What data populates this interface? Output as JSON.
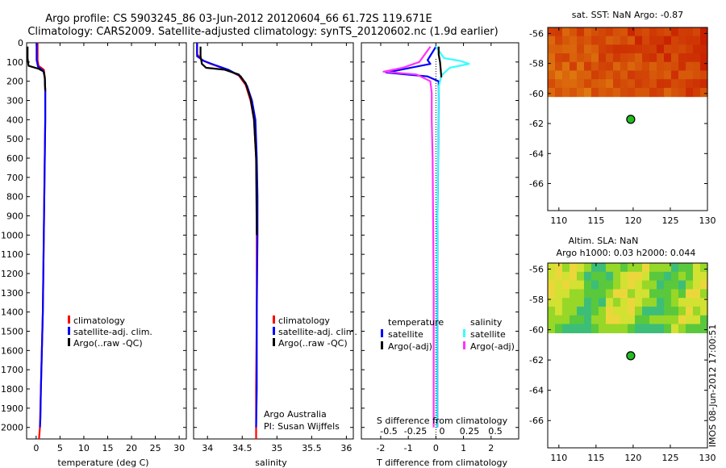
{
  "header": {
    "line1": "Argo profile: CS 5903245_86 03-Jun-2012 20120604_66 61.72S 119.671E",
    "line2": "Climatology: CARS2009. Satellite-adjusted climatology: synTS_20120602.nc (1.9d earlier)"
  },
  "colors": {
    "red": "#ff0000",
    "blue": "#0000ff",
    "black": "#000000",
    "cyan": "#33ffff",
    "magenta": "#ff33ff"
  },
  "depth_ticks": [
    0,
    100,
    200,
    300,
    400,
    500,
    600,
    700,
    800,
    900,
    1000,
    1100,
    1200,
    1300,
    1400,
    1500,
    1600,
    1700,
    1800,
    1900,
    2000
  ],
  "chart_data": [
    {
      "type": "line",
      "name": "temperature-profile",
      "xlabel": "temperature (deg C)",
      "xlim": [
        -2,
        31.5
      ],
      "ylim": [
        2060,
        0
      ],
      "xticks": [
        0,
        5,
        10,
        15,
        20,
        25,
        30
      ],
      "legend": [
        "climatology",
        "satellite-adj. clim.",
        "Argo(..raw -QC)"
      ],
      "series": [
        {
          "name": "climatology",
          "color": "red",
          "x": [
            0.3,
            0.3,
            0.5,
            1.6,
            1.8,
            1.9,
            1.9,
            1.8,
            1.7,
            1.6,
            1.5,
            1.4,
            1.2,
            1.0,
            0.8,
            0.6
          ],
          "y": [
            0,
            90,
            120,
            140,
            180,
            250,
            400,
            600,
            800,
            1000,
            1200,
            1400,
            1600,
            1800,
            2000,
            2060
          ]
        },
        {
          "name": "satellite-adj. clim.",
          "color": "blue",
          "x": [
            0.1,
            0.1,
            0.4,
            1.5,
            1.8,
            1.9,
            1.9,
            1.8,
            1.7,
            1.6,
            1.5,
            1.4,
            1.2,
            1.0,
            0.9,
            0.8
          ],
          "y": [
            0,
            90,
            125,
            145,
            180,
            250,
            400,
            600,
            800,
            1000,
            1200,
            1400,
            1600,
            1800,
            1950,
            2000
          ]
        },
        {
          "name": "Argo(..raw -QC)",
          "color": "black",
          "x": [
            -1.8,
            -1.8,
            -1.6,
            0.5,
            1.6,
            1.8,
            1.9
          ],
          "y": [
            20,
            80,
            120,
            135,
            150,
            180,
            250
          ]
        }
      ]
    },
    {
      "type": "line",
      "name": "salinity-profile",
      "xlabel": "salinity",
      "xlim": [
        33.8,
        36.1
      ],
      "ylim": [
        2060,
        0
      ],
      "xticks": [
        34,
        34.5,
        35,
        35.5,
        36
      ],
      "legend": [
        "climatology",
        "satellite-adj. clim.",
        "Argo(..raw -QC)"
      ],
      "annotation": [
        "Argo Australia",
        "PI: Susan Wijffels"
      ],
      "series": [
        {
          "name": "climatology",
          "color": "red",
          "x": [
            33.85,
            33.85,
            33.92,
            34.05,
            34.25,
            34.45,
            34.55,
            34.62,
            34.67,
            34.7,
            34.71,
            34.71,
            34.71,
            34.7,
            34.7,
            34.7
          ],
          "y": [
            0,
            60,
            90,
            110,
            135,
            170,
            220,
            300,
            400,
            600,
            800,
            1000,
            1400,
            1800,
            2000,
            2060
          ]
        },
        {
          "name": "satellite-adj. clim.",
          "color": "blue",
          "x": [
            33.85,
            33.85,
            33.95,
            34.1,
            34.3,
            34.48,
            34.57,
            34.64,
            34.69,
            34.71,
            34.72,
            34.72,
            34.71,
            34.71,
            34.7
          ],
          "y": [
            0,
            70,
            95,
            115,
            140,
            175,
            225,
            300,
            400,
            600,
            800,
            1000,
            1400,
            1800,
            2000
          ]
        },
        {
          "name": "Argo(..raw -QC)",
          "color": "black",
          "x": [
            33.9,
            33.9,
            33.92,
            33.98,
            34.25,
            34.45,
            34.55,
            34.62,
            34.67,
            34.7,
            34.71
          ],
          "y": [
            20,
            70,
            110,
            130,
            140,
            165,
            210,
            290,
            400,
            600,
            1000
          ]
        }
      ]
    },
    {
      "type": "line",
      "name": "difference-profile",
      "xlabel": "T difference from climatology",
      "xlabel2": "S difference from climatology",
      "xlim": [
        -2.7,
        3
      ],
      "ylim": [
        2060,
        0
      ],
      "xticks": [
        -2,
        -1,
        0,
        1,
        2
      ],
      "xticks_s": [
        -0.5,
        -0.25,
        0,
        0.25,
        0.5
      ],
      "legend_t_title": "temperature",
      "legend_s_title": "salinity",
      "legend": [
        "satellite",
        "Argo(-adj)",
        "satellite",
        "Argo(-adj)"
      ],
      "series": [
        {
          "name": "temperature satellite",
          "color": "blue",
          "x": [
            0,
            -0.3,
            -0.2,
            -1.8,
            -0.3,
            0.1,
            0.1,
            0.08,
            0.06,
            0.05,
            0.05,
            0.05,
            0.05
          ],
          "y": [
            20,
            90,
            110,
            155,
            175,
            200,
            300,
            600,
            900,
            1200,
            1500,
            1800,
            2000
          ]
        },
        {
          "name": "salinity satellite",
          "color": "cyan",
          "x": [
            0,
            0.3,
            0.9,
            1.2,
            0.5,
            0.2,
            0.1,
            0.08,
            0.06,
            0.04,
            0.04,
            0.04
          ],
          "y": [
            20,
            80,
            95,
            110,
            130,
            170,
            230,
            500,
            900,
            1300,
            1700,
            2000
          ]
        },
        {
          "name": "temperature Argo(-adj)",
          "color": "black",
          "x": [
            0.1,
            0.1,
            0.15,
            0.2
          ],
          "y": [
            20,
            60,
            100,
            180
          ]
        },
        {
          "name": "salinity Argo(-adj)",
          "color": "magenta",
          "x": [
            -0.2,
            -0.6,
            -1.2,
            -1.9,
            -0.7,
            -0.2,
            -0.15,
            -0.15,
            -0.12,
            -0.1,
            -0.08,
            -0.08,
            -0.08
          ],
          "y": [
            20,
            100,
            130,
            150,
            165,
            200,
            260,
            400,
            600,
            900,
            1300,
            1700,
            2000
          ]
        }
      ]
    },
    {
      "type": "heatmap",
      "name": "sst-map",
      "title": "sat. SST: NaN Argo: -0.87",
      "xlim": [
        108.5,
        130
      ],
      "ylim": [
        -67.8,
        -55.6
      ],
      "xticks": [
        110,
        115,
        120,
        125,
        130
      ],
      "yticks": [
        -56,
        -58,
        -60,
        -62,
        -64,
        -66
      ],
      "marker": {
        "lon": 119.671,
        "lat": -61.72
      }
    },
    {
      "type": "heatmap",
      "name": "sla-map",
      "title": "Altim. SLA: NaN",
      "title2": "Argo h1000: 0.03 h2000: 0.044",
      "xlim": [
        108.5,
        130
      ],
      "ylim": [
        -67.8,
        -55.6
      ],
      "xticks": [
        110,
        115,
        120,
        125,
        130
      ],
      "yticks": [
        -56,
        -58,
        -60,
        -62,
        -64,
        -66
      ],
      "marker": {
        "lon": 119.671,
        "lat": -61.72
      }
    }
  ],
  "stamp": "IMOS 08-Jun-2012 17:00:51"
}
